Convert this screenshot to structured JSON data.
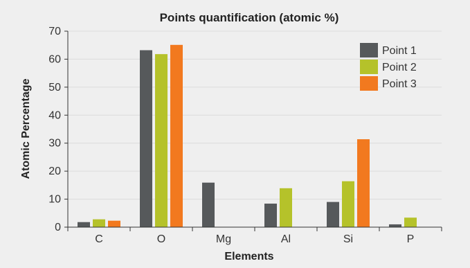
{
  "chart_data": {
    "type": "bar",
    "title": "Points quantification (atomic %)",
    "xlabel": "Elements",
    "ylabel": "Atomic Percentage",
    "categories": [
      "C",
      "O",
      "Mg",
      "Al",
      "Si",
      "P"
    ],
    "series": [
      {
        "name": "Point 1",
        "color": "#56595b",
        "values": [
          1.8,
          63.2,
          15.9,
          8.4,
          9.0,
          1.0
        ]
      },
      {
        "name": "Point 2",
        "color": "#b5c22a",
        "values": [
          2.8,
          61.8,
          0,
          13.9,
          16.4,
          3.4
        ]
      },
      {
        "name": "Point 3",
        "color": "#f2791f",
        "values": [
          2.3,
          65.1,
          0,
          0,
          31.4,
          0
        ]
      }
    ],
    "ylim": [
      0,
      70
    ],
    "yticks": [
      0,
      10,
      20,
      30,
      40,
      50,
      60,
      70
    ],
    "grid": true,
    "legend_position": "top-right"
  }
}
